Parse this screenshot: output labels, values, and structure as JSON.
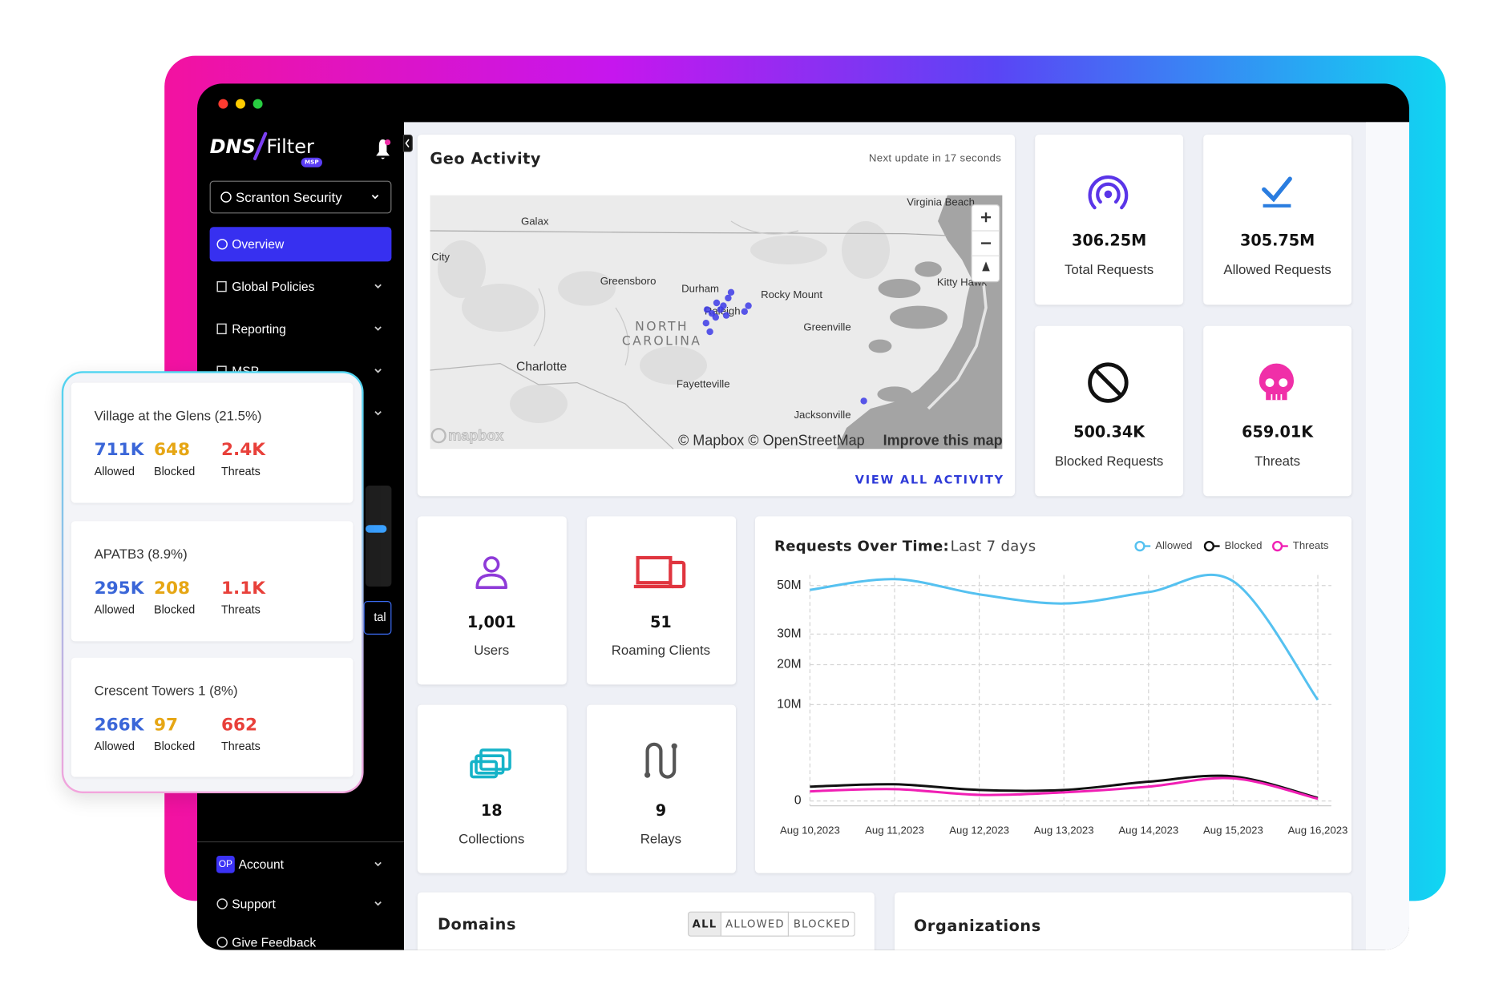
{
  "sidebar": {
    "logo": {
      "name_left": "DNS",
      "name_right": "Filter",
      "badge": "MSP"
    },
    "org_selector": "Scranton Security",
    "nav": [
      "Overview",
      "Global Policies",
      "Reporting",
      "MSP"
    ],
    "partial_button": "tal",
    "account_badge": "OP",
    "bottom_nav": [
      "Account",
      "Support",
      "Give Feedback"
    ]
  },
  "overlay_cards": [
    {
      "title": "Village at the Glens (21.5%)",
      "stats": [
        {
          "value": "711K",
          "label": "Allowed"
        },
        {
          "value": "648",
          "label": "Blocked"
        },
        {
          "value": "2.4K",
          "label": "Threats"
        }
      ]
    },
    {
      "title": "APATB3 (8.9%)",
      "stats": [
        {
          "value": "295K",
          "label": "Allowed"
        },
        {
          "value": "208",
          "label": "Blocked"
        },
        {
          "value": "1.1K",
          "label": "Threats"
        }
      ]
    },
    {
      "title": "Crescent Towers 1 (8%)",
      "stats": [
        {
          "value": "266K",
          "label": "Allowed"
        },
        {
          "value": "97",
          "label": "Blocked"
        },
        {
          "value": "662",
          "label": "Threats"
        }
      ]
    }
  ],
  "geo_activity": {
    "title": "Geo Activity",
    "next_update": "Next update in 17 seconds",
    "map": {
      "cities": [
        "Galax",
        "City",
        "Greensboro",
        "Durham",
        "Raleigh",
        "Rocky Mount",
        "Greenville",
        "Charlotte",
        "Fayetteville",
        "Jacksonville",
        "Virginia Beach",
        "Kitty Hawk"
      ],
      "region": [
        "NORTH",
        "CAROLINA"
      ],
      "logo": "mapbox",
      "attribution": "© Mapbox © OpenStreetMap",
      "improve_link": "Improve this map"
    },
    "link": "VIEW ALL ACTIVITY"
  },
  "request_stats": [
    {
      "value": "306.25M",
      "label": "Total Requests"
    },
    {
      "value": "305.75M",
      "label": "Allowed Requests"
    },
    {
      "value": "500.34K",
      "label": "Blocked Requests"
    },
    {
      "value": "659.01K",
      "label": "Threats"
    }
  ],
  "resource_counts": [
    {
      "value": "1,001",
      "label": "Users"
    },
    {
      "value": "51",
      "label": "Roaming Clients"
    },
    {
      "value": "18",
      "label": "Collections"
    },
    {
      "value": "9",
      "label": "Relays"
    }
  ],
  "requests_chart": {
    "type": "line",
    "title": "Requests Over Time:",
    "subtitle": "Last 7 days",
    "categories": [
      "Aug 10,2023",
      "Aug 11,2023",
      "Aug 12,2023",
      "Aug 13,2023",
      "Aug 14,2023",
      "Aug 15,2023",
      "Aug 16,2023"
    ],
    "series": [
      {
        "name": "Allowed",
        "color": "#55c1f0",
        "values": [
          48000000,
          53000000,
          46000000,
          42000000,
          47000000,
          52000000,
          11000000
        ]
      },
      {
        "name": "Blocked",
        "color": "#111111",
        "values": [
          220000,
          300000,
          130000,
          130000,
          400000,
          650000,
          10000
        ]
      },
      {
        "name": "Threats",
        "color": "#f01fb4",
        "values": [
          100000,
          150000,
          40000,
          80000,
          220000,
          550000,
          5000
        ]
      }
    ],
    "ylim": [
      0,
      55000000
    ],
    "yticks": [
      0,
      {
        "value": 10000000,
        "label": "10M"
      },
      {
        "value": 20000000,
        "label": "20M"
      },
      {
        "value": 30000000,
        "label": "30M"
      },
      {
        "value": 50000000,
        "label": "50M"
      }
    ],
    "scale": "sqrt",
    "grid": true
  },
  "domains": {
    "title": "Domains",
    "filters": [
      "ALL",
      "ALLOWED",
      "BLOCKED"
    ]
  },
  "organizations": {
    "title": "Organizations"
  }
}
